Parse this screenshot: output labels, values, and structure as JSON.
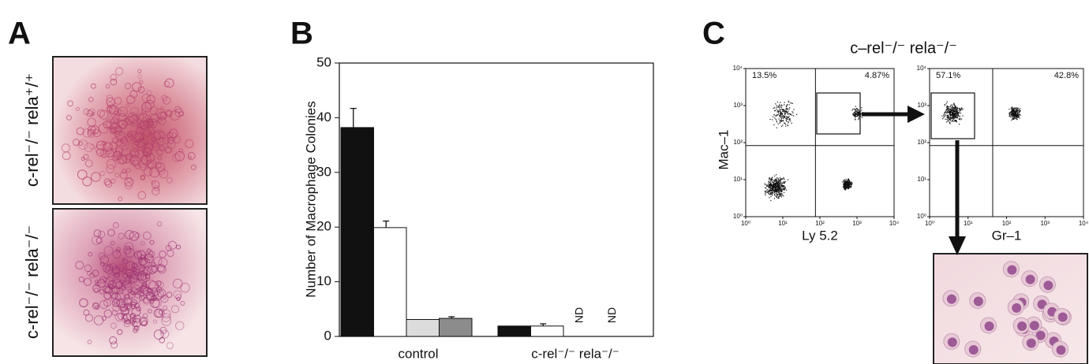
{
  "panel_a": {
    "label": "A",
    "rows": [
      "c-rel⁻/⁻ rela⁺/⁺",
      "c-rel⁻/⁻ rela⁻/⁻"
    ]
  },
  "panel_b": {
    "label": "B"
  },
  "chart_data": {
    "type": "bar",
    "y_label": "Number of Macrophage Colonies",
    "categories": [
      "control",
      "c-rel⁻/⁻ rela⁻/⁻"
    ],
    "series": [
      {
        "color": "#111111",
        "values": [
          38.2,
          1.9
        ],
        "errors": [
          3.5,
          null
        ]
      },
      {
        "color": "#ffffff",
        "values": [
          19.9,
          1.9
        ],
        "errors": [
          1.2,
          0.4
        ]
      },
      {
        "color": "#dcdcdc",
        "values": [
          3.1,
          null
        ],
        "errors": [
          null,
          null
        ],
        "value_labels": [
          null,
          "ND"
        ]
      },
      {
        "color": "#8c8c8c",
        "values": [
          3.3,
          null
        ],
        "errors": [
          0.3,
          null
        ],
        "value_labels": [
          null,
          "ND"
        ]
      }
    ],
    "ylim": [
      0,
      50
    ],
    "yticks": [
      0,
      10,
      20,
      30,
      40,
      50
    ],
    "grid": false
  },
  "panel_c": {
    "label": "C",
    "title": "c–rel⁻/⁻ rela⁻/⁻",
    "y_label": "Mac–1",
    "lim": [
      1,
      10000
    ],
    "ticks": [
      {
        "value": 1,
        "label": "10⁰"
      },
      {
        "value": 10,
        "label": "10¹"
      },
      {
        "value": 100,
        "label": "10²"
      },
      {
        "value": 1000,
        "label": "10³"
      },
      {
        "value": 10000,
        "label": "10⁴"
      }
    ],
    "plots": [
      {
        "x_label": "Ly 5.2",
        "quadrants": [
          "13.5%",
          "4.87%"
        ]
      },
      {
        "x_label": "Gr–1",
        "quadrants": [
          "57.1%",
          "42.8%"
        ]
      }
    ]
  }
}
